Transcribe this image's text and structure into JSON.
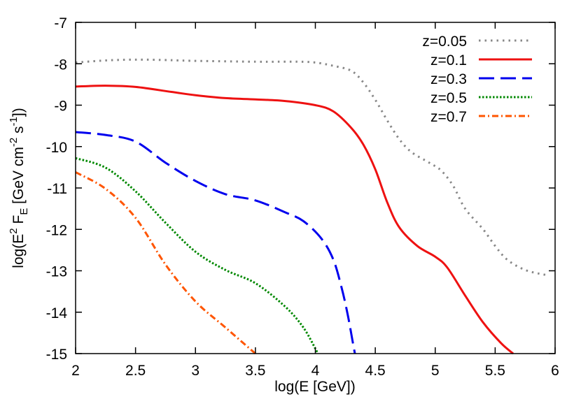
{
  "chart_data": {
    "type": "line",
    "title": "",
    "xlabel": "log(E [GeV])",
    "ylabel_parts": [
      "log(E",
      "2",
      " F",
      "E",
      " [GeV cm",
      "-2",
      " s",
      "-1",
      "])"
    ],
    "xlim": [
      2,
      6
    ],
    "ylim": [
      -15,
      -7
    ],
    "xticks": [
      "2",
      "2.5",
      "3",
      "3.5",
      "4",
      "4.5",
      "5",
      "5.5",
      "6"
    ],
    "yticks": [
      "-7",
      "-8",
      "-9",
      "-10",
      "-11",
      "-12",
      "-13",
      "-14",
      "-15"
    ],
    "grid": false,
    "legend_position": "top-right",
    "series": [
      {
        "name": "z=0.05",
        "color": "#888888",
        "style": "dotted",
        "points": [
          [
            2,
            -7.97
          ],
          [
            2.25,
            -7.92
          ],
          [
            2.5,
            -7.9
          ],
          [
            2.75,
            -7.91
          ],
          [
            3,
            -7.93
          ],
          [
            3.5,
            -7.95
          ],
          [
            3.85,
            -7.95
          ],
          [
            4,
            -7.97
          ],
          [
            4.15,
            -8.05
          ],
          [
            4.3,
            -8.17
          ],
          [
            4.4,
            -8.45
          ],
          [
            4.5,
            -8.87
          ],
          [
            4.6,
            -9.37
          ],
          [
            4.7,
            -9.82
          ],
          [
            4.8,
            -10.13
          ],
          [
            4.95,
            -10.39
          ],
          [
            5.05,
            -10.58
          ],
          [
            5.15,
            -10.95
          ],
          [
            5.25,
            -11.5
          ],
          [
            5.4,
            -12.0
          ],
          [
            5.5,
            -12.4
          ],
          [
            5.6,
            -12.73
          ],
          [
            5.75,
            -12.98
          ],
          [
            5.92,
            -13.1
          ]
        ]
      },
      {
        "name": "z=0.1",
        "color": "#ee1111",
        "style": "solid",
        "points": [
          [
            2,
            -8.55
          ],
          [
            2.25,
            -8.53
          ],
          [
            2.5,
            -8.56
          ],
          [
            2.8,
            -8.68
          ],
          [
            3,
            -8.76
          ],
          [
            3.25,
            -8.83
          ],
          [
            3.5,
            -8.86
          ],
          [
            3.75,
            -8.9
          ],
          [
            4,
            -9.0
          ],
          [
            4.15,
            -9.15
          ],
          [
            4.3,
            -9.55
          ],
          [
            4.4,
            -9.95
          ],
          [
            4.5,
            -10.55
          ],
          [
            4.6,
            -11.35
          ],
          [
            4.7,
            -11.95
          ],
          [
            4.85,
            -12.4
          ],
          [
            5,
            -12.66
          ],
          [
            5.1,
            -12.92
          ],
          [
            5.25,
            -13.6
          ],
          [
            5.4,
            -14.25
          ],
          [
            5.55,
            -14.75
          ],
          [
            5.65,
            -15
          ]
        ]
      },
      {
        "name": "z=0.3",
        "color": "#0000ee",
        "style": "dashed",
        "points": [
          [
            2,
            -9.65
          ],
          [
            2.25,
            -9.72
          ],
          [
            2.5,
            -9.88
          ],
          [
            2.75,
            -10.39
          ],
          [
            3,
            -10.83
          ],
          [
            3.25,
            -11.15
          ],
          [
            3.5,
            -11.3
          ],
          [
            3.75,
            -11.59
          ],
          [
            3.9,
            -11.8
          ],
          [
            4.05,
            -12.22
          ],
          [
            4.15,
            -12.73
          ],
          [
            4.22,
            -13.42
          ],
          [
            4.27,
            -14.06
          ],
          [
            4.31,
            -14.69
          ],
          [
            4.33,
            -15
          ]
        ]
      },
      {
        "name": "z=0.5",
        "color": "#008800",
        "style": "dotted-dense",
        "points": [
          [
            2,
            -10.28
          ],
          [
            2.25,
            -10.51
          ],
          [
            2.5,
            -11.08
          ],
          [
            2.75,
            -11.84
          ],
          [
            3,
            -12.54
          ],
          [
            3.25,
            -12.98
          ],
          [
            3.5,
            -13.3
          ],
          [
            3.75,
            -13.87
          ],
          [
            3.9,
            -14.37
          ],
          [
            4,
            -14.88
          ],
          [
            4.02,
            -15
          ]
        ]
      },
      {
        "name": "z=0.7",
        "color": "#ff5500",
        "style": "dash-dot",
        "points": [
          [
            2,
            -10.62
          ],
          [
            2.25,
            -11.02
          ],
          [
            2.5,
            -11.72
          ],
          [
            2.75,
            -12.85
          ],
          [
            3,
            -13.74
          ],
          [
            3.25,
            -14.37
          ],
          [
            3.5,
            -15
          ]
        ]
      }
    ]
  }
}
